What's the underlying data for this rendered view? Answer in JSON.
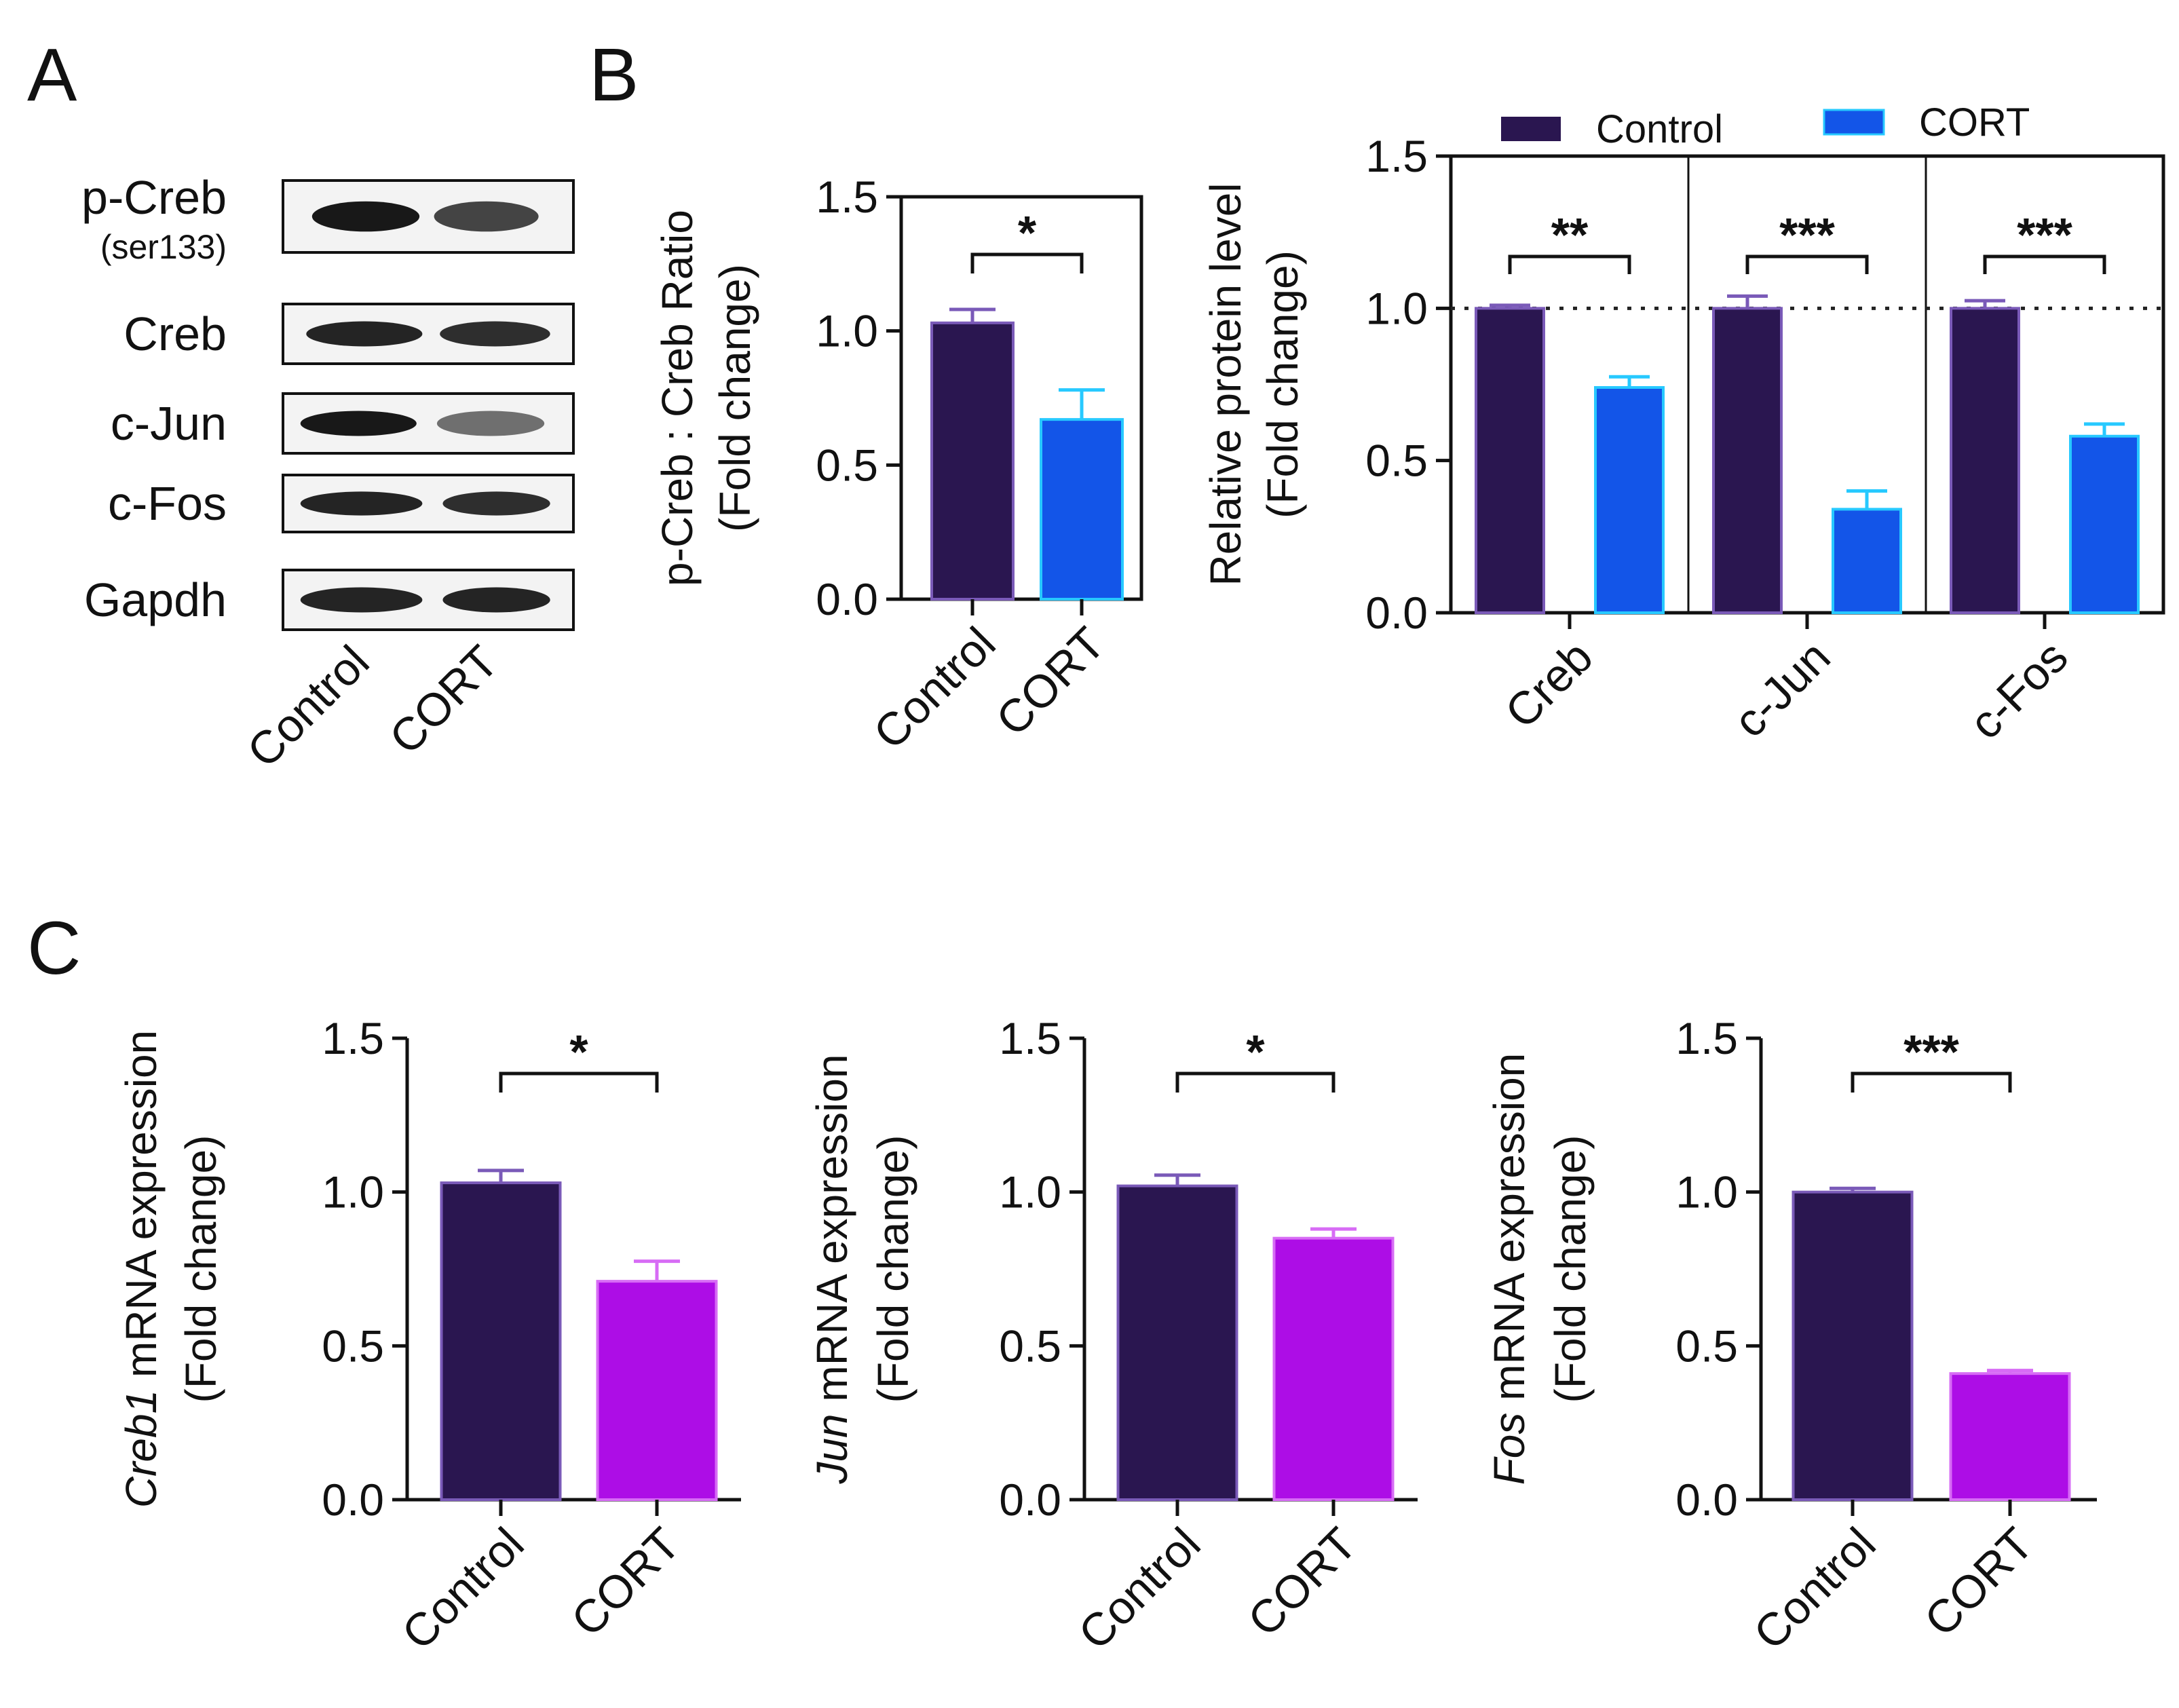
{
  "panels": {
    "a": "A",
    "b": "B",
    "c": "C"
  },
  "colors": {
    "control": "#2a1650",
    "control_err": "#7a5ab8",
    "cort_b": "#1355e8",
    "cort_b_edge": "#27c9ff",
    "cort_c": "#ad0de6",
    "cort_c_edge": "#d76cf5",
    "blot_band": "#181818"
  },
  "blots": {
    "rows": [
      {
        "label": "p-Creb",
        "sublabel": "(ser133)"
      },
      {
        "label": "Creb",
        "sublabel": ""
      },
      {
        "label": "c-Jun",
        "sublabel": ""
      },
      {
        "label": "c-Fos",
        "sublabel": ""
      },
      {
        "label": "Gapdh",
        "sublabel": ""
      }
    ],
    "lanes": [
      "Control",
      "CORT"
    ]
  },
  "legend": {
    "control": "Control",
    "cort": "CORT"
  },
  "chart_data": [
    {
      "id": "B1",
      "panel": "B",
      "type": "bar",
      "categories": [
        "Control",
        "CORT"
      ],
      "values": [
        1.03,
        0.67
      ],
      "errors": [
        0.05,
        0.11
      ],
      "ylabel_line1": "p-Creb : Creb Ratio",
      "ylabel_line2": "(Fold change)",
      "ylim": [
        0,
        1.5
      ],
      "yticks": [
        "0.0",
        "0.5",
        "1.0",
        "1.5"
      ],
      "significance": "*"
    },
    {
      "id": "B2",
      "panel": "B",
      "type": "bar",
      "groups": [
        "Creb",
        "c-Jun",
        "c-Fos"
      ],
      "series": [
        {
          "name": "Control",
          "values": [
            1.0,
            1.0,
            1.0
          ],
          "errors": [
            0.01,
            0.04,
            0.025
          ]
        },
        {
          "name": "CORT",
          "values": [
            0.74,
            0.34,
            0.58
          ],
          "errors": [
            0.035,
            0.06,
            0.04
          ]
        }
      ],
      "significance": [
        "**",
        "***",
        "***"
      ],
      "reference_line": 1.0,
      "ylabel_line1": "Relative protein level",
      "ylabel_line2": "(Fold change)",
      "ylim": [
        0,
        1.5
      ],
      "yticks": [
        "0.0",
        "0.5",
        "1.0",
        "1.5"
      ]
    },
    {
      "id": "C1",
      "panel": "C",
      "type": "bar",
      "categories": [
        "Control",
        "CORT"
      ],
      "values": [
        1.03,
        0.71
      ],
      "errors": [
        0.04,
        0.065
      ],
      "ylabel_gene": "Creb1",
      "ylabel_rest": " mRNA expression",
      "ylabel_line2": "(Fold change)",
      "ylim": [
        0,
        1.5
      ],
      "yticks": [
        "0.0",
        "0.5",
        "1.0",
        "1.5"
      ],
      "significance": "*"
    },
    {
      "id": "C2",
      "panel": "C",
      "type": "bar",
      "categories": [
        "Control",
        "CORT"
      ],
      "values": [
        1.02,
        0.85
      ],
      "errors": [
        0.035,
        0.03
      ],
      "ylabel_gene": "Jun",
      "ylabel_rest": " mRNA expression",
      "ylabel_line2": "(Fold change)",
      "ylim": [
        0,
        1.5
      ],
      "yticks": [
        "0.0",
        "0.5",
        "1.0",
        "1.5"
      ],
      "significance": "*"
    },
    {
      "id": "C3",
      "panel": "C",
      "type": "bar",
      "categories": [
        "Control",
        "CORT"
      ],
      "values": [
        1.0,
        0.41
      ],
      "errors": [
        0.012,
        0.01
      ],
      "ylabel_gene": "Fos",
      "ylabel_rest": " mRNA expression",
      "ylabel_line2": "(Fold change)",
      "ylim": [
        0,
        1.5
      ],
      "yticks": [
        "0.0",
        "0.5",
        "1.0",
        "1.5"
      ],
      "significance": "***"
    }
  ]
}
